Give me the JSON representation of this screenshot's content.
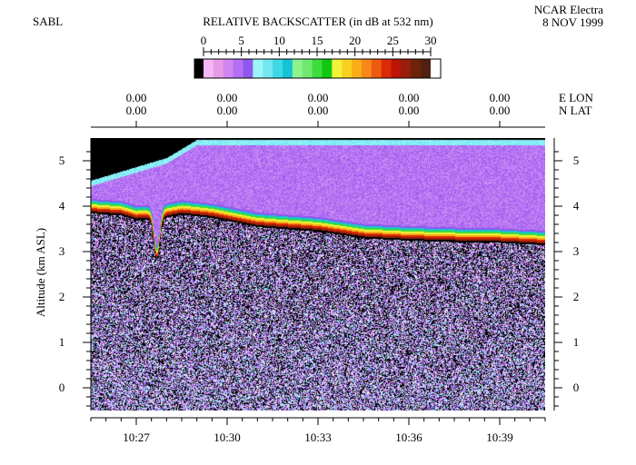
{
  "header": {
    "instrument": "SABL",
    "title": "RELATIVE BACKSCATTER (in dB at 532 nm)",
    "platform": "NCAR Electra",
    "date": "8 NOV 1999"
  },
  "colorbar": {
    "ticks": [
      "0",
      "5",
      "10",
      "15",
      "20",
      "25",
      "30"
    ],
    "range": [
      0,
      30
    ],
    "colors": [
      "#000000",
      "#f4b6f4",
      "#e79ae8",
      "#cf86f0",
      "#b46ff4",
      "#8f58ec",
      "#9af4f8",
      "#74e8f0",
      "#3ed8e4",
      "#14c4d4",
      "#8ef28e",
      "#6fe86f",
      "#3cdc3c",
      "#10c810",
      "#f2f23a",
      "#f8d21e",
      "#f8ae18",
      "#f88818",
      "#f05a10",
      "#dc2a08",
      "#bc1406",
      "#961e0a",
      "#6e2208",
      "#502010",
      "#ffffff"
    ]
  },
  "top_axis": {
    "lon_values": [
      "0.00",
      "0.00",
      "0.00",
      "0.00",
      "0.00"
    ],
    "lat_values": [
      "0.00",
      "0.00",
      "0.00",
      "0.00",
      "0.00"
    ],
    "lon_label": "E LON",
    "lat_label": "N LAT"
  },
  "chart_data": {
    "type": "heatmap",
    "title": "RELATIVE BACKSCATTER (in dB at 532 nm)",
    "ylabel": "Altitude (km ASL)",
    "xlabel": "",
    "x_range": [
      "10:25:30",
      "10:40:30"
    ],
    "xticks": [
      "10:27",
      "10:30",
      "10:33",
      "10:36",
      "10:39"
    ],
    "ylim": [
      -0.5,
      5.5
    ],
    "yticks": [
      "0",
      "1",
      "2",
      "3",
      "4",
      "5"
    ],
    "color_range_db": [
      0,
      30
    ],
    "cloud_top_km": [
      {
        "time": "10:25:30",
        "alt": 4.45
      },
      {
        "time": "10:27:00",
        "alt": 4.75
      },
      {
        "time": "10:28:00",
        "alt": 4.95
      },
      {
        "time": "10:29:00",
        "alt": 5.35
      },
      {
        "time": "10:40:30",
        "alt": 5.35
      }
    ],
    "high_backscatter_layer_km": [
      {
        "time": "10:25:30",
        "alt": 3.85
      },
      {
        "time": "10:26:30",
        "alt": 3.8
      },
      {
        "time": "10:27:00",
        "alt": 3.7
      },
      {
        "time": "10:27:40",
        "alt": 3.72
      },
      {
        "time": "10:28:30",
        "alt": 3.82
      },
      {
        "time": "10:29:30",
        "alt": 3.75
      },
      {
        "time": "10:31:00",
        "alt": 3.55
      },
      {
        "time": "10:33:00",
        "alt": 3.45
      },
      {
        "time": "10:34:30",
        "alt": 3.3
      },
      {
        "time": "10:36:00",
        "alt": 3.25
      },
      {
        "time": "10:37:30",
        "alt": 3.22
      },
      {
        "time": "10:39:00",
        "alt": 3.2
      },
      {
        "time": "10:40:30",
        "alt": 3.15
      }
    ]
  }
}
